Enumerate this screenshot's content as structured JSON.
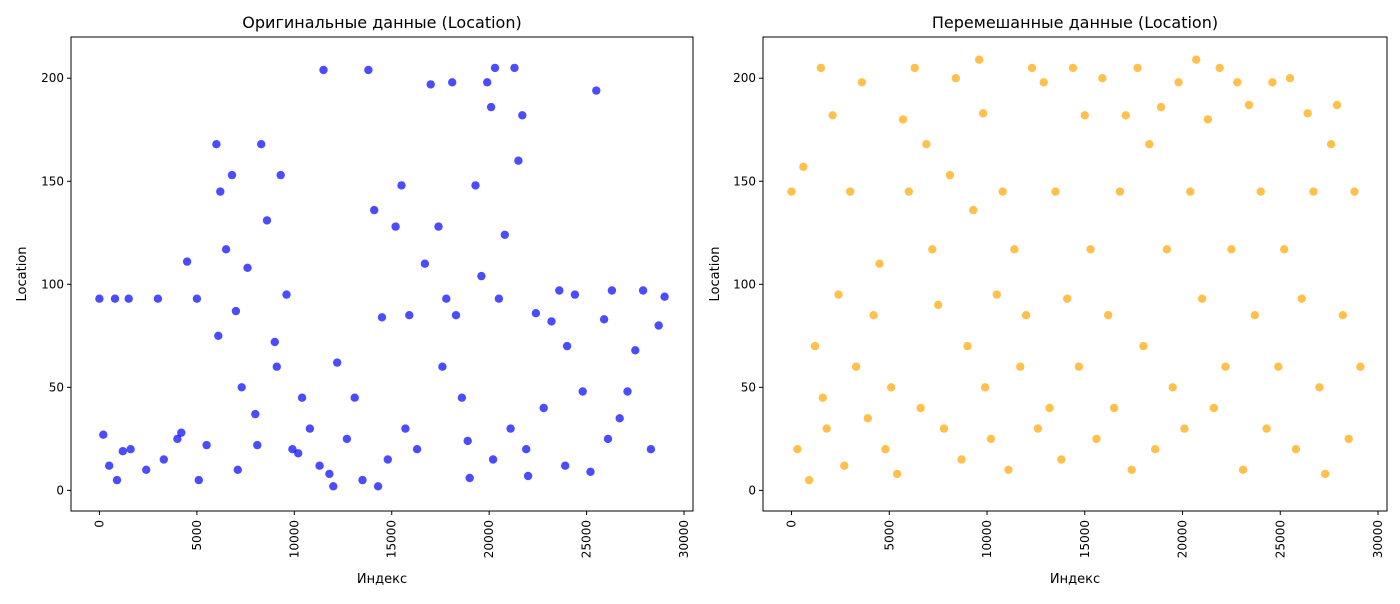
{
  "chart_data": [
    {
      "type": "scatter",
      "title": "Оригинальные данные (Location)",
      "xlabel": "Индекс",
      "ylabel": "Location",
      "xlim": [
        -1460,
        30460
      ],
      "ylim": [
        -10,
        220
      ],
      "x_ticks": [
        0,
        5000,
        10000,
        15000,
        20000,
        25000,
        30000
      ],
      "x_tick_labels": [
        "0",
        "5000",
        "10000",
        "15000",
        "20000",
        "25000",
        "30000"
      ],
      "y_ticks": [
        0,
        50,
        100,
        150,
        200
      ],
      "y_tick_labels": [
        "0",
        "50",
        "100",
        "150",
        "200"
      ],
      "x_tick_rotation": 90,
      "grid": false,
      "color": "#0000ff",
      "alpha": 0.7,
      "series": [
        {
          "x": [
            0,
            200,
            500,
            800,
            1200,
            1500,
            3000,
            4000,
            4500,
            5000,
            5500,
            6000,
            6200,
            6500,
            6800,
            7000,
            7300,
            7600,
            8000,
            8300,
            8600,
            9000,
            9300,
            9600,
            9900,
            10200,
            10800,
            11300,
            11500,
            11800,
            12200,
            12700,
            13100,
            13500,
            13800,
            14100,
            14500,
            14800,
            15200,
            15500,
            15900,
            16300,
            16700,
            17000,
            17400,
            17800,
            18100,
            18300,
            18600,
            19000,
            19300,
            19600,
            19900,
            20100,
            20300,
            20500,
            20800,
            21100,
            21300,
            21500,
            21700,
            22000,
            22400,
            22800,
            23200,
            23600,
            24000,
            24400,
            24800,
            25200,
            25500,
            25900,
            26300,
            26700,
            27100,
            27500,
            27900,
            28300,
            28700,
            29000,
            900,
            1600,
            2400,
            3300,
            4200,
            5100,
            6100,
            7100,
            8100,
            9100,
            10400,
            12000,
            14300,
            15700,
            17600,
            18900,
            20200,
            21900,
            23900,
            26100
          ],
          "y": [
            93,
            27,
            12,
            93,
            19,
            93,
            93,
            25,
            111,
            93,
            22,
            168,
            145,
            117,
            153,
            87,
            50,
            108,
            37,
            168,
            131,
            72,
            153,
            95,
            20,
            18,
            30,
            12,
            204,
            8,
            62,
            25,
            45,
            5,
            204,
            136,
            84,
            15,
            128,
            148,
            85,
            20,
            110,
            197,
            128,
            93,
            198,
            85,
            45,
            6,
            148,
            104,
            198,
            186,
            205,
            93,
            124,
            30,
            205,
            160,
            182,
            7,
            86,
            40,
            82,
            97,
            70,
            95,
            48,
            9,
            194,
            83,
            97,
            35,
            48,
            68,
            97,
            20,
            80,
            94,
            5,
            20,
            10,
            15,
            28,
            5,
            75,
            10,
            22,
            60,
            45,
            2,
            2,
            30,
            60,
            24,
            15,
            20,
            12,
            25
          ]
        }
      ]
    },
    {
      "type": "scatter",
      "title": "Перемешанные данные (Location)",
      "xlabel": "Индекс",
      "ylabel": "Location",
      "xlim": [
        -1460,
        30460
      ],
      "ylim": [
        -10,
        220
      ],
      "x_ticks": [
        0,
        5000,
        10000,
        15000,
        20000,
        25000,
        30000
      ],
      "x_tick_labels": [
        "0",
        "5000",
        "10000",
        "15000",
        "20000",
        "25000",
        "30000"
      ],
      "y_ticks": [
        0,
        50,
        100,
        150,
        200
      ],
      "y_tick_labels": [
        "0",
        "50",
        "100",
        "150",
        "200"
      ],
      "x_tick_rotation": 90,
      "grid": false,
      "color": "#ffa500",
      "alpha": 0.7,
      "series": [
        {
          "x": [
            0,
            300,
            600,
            900,
            1200,
            1500,
            1800,
            2100,
            2400,
            2700,
            3000,
            3300,
            3600,
            3900,
            4200,
            4500,
            4800,
            5100,
            5400,
            5700,
            6000,
            6300,
            6600,
            6900,
            7200,
            7500,
            7800,
            8100,
            8400,
            8700,
            9000,
            9300,
            9600,
            9900,
            10200,
            10500,
            10800,
            11100,
            11400,
            11700,
            12000,
            12300,
            12600,
            12900,
            13200,
            13500,
            13800,
            14100,
            14400,
            14700,
            15000,
            15300,
            15600,
            15900,
            16200,
            16500,
            16800,
            17100,
            17400,
            17700,
            18000,
            18300,
            18600,
            18900,
            19200,
            19500,
            19800,
            20100,
            20400,
            20700,
            21000,
            21300,
            21600,
            21900,
            22200,
            22500,
            22800,
            23100,
            23400,
            23700,
            24000,
            24300,
            24600,
            24900,
            25200,
            25500,
            25800,
            26100,
            26400,
            26700,
            27000,
            27300,
            27600,
            27900,
            28200,
            28500,
            28800,
            29100,
            1600,
            9800
          ],
          "y": [
            145,
            20,
            157,
            5,
            70,
            205,
            30,
            182,
            95,
            12,
            145,
            60,
            198,
            35,
            85,
            110,
            20,
            50,
            8,
            180,
            145,
            205,
            40,
            168,
            117,
            90,
            30,
            153,
            200,
            15,
            70,
            136,
            209,
            50,
            25,
            95,
            145,
            10,
            117,
            60,
            85,
            205,
            30,
            198,
            40,
            145,
            15,
            93,
            205,
            60,
            182,
            117,
            25,
            200,
            85,
            40,
            145,
            182,
            10,
            205,
            70,
            168,
            20,
            186,
            117,
            50,
            198,
            30,
            145,
            209,
            93,
            180,
            40,
            205,
            60,
            117,
            198,
            10,
            187,
            85,
            145,
            30,
            198,
            60,
            117,
            200,
            20,
            93,
            183,
            145,
            50,
            8,
            168,
            187,
            85,
            25,
            145,
            60,
            45,
            183
          ]
        }
      ]
    }
  ]
}
